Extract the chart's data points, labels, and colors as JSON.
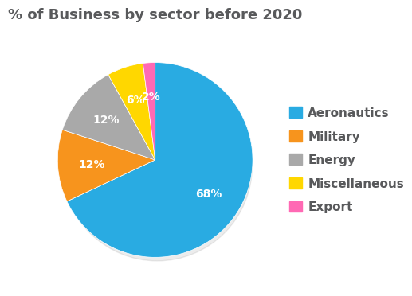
{
  "title": "% of Business by sector before 2020",
  "labels": [
    "Aeronautics",
    "Military",
    "Energy",
    "Miscellaneous",
    "Export"
  ],
  "values": [
    68,
    12,
    12,
    6,
    2
  ],
  "colors": [
    "#29ABE2",
    "#F7941D",
    "#A9A9A9",
    "#FFD700",
    "#FF69B4"
  ],
  "pct_labels": [
    "68%",
    "12%",
    "12%",
    "6%",
    "2%"
  ],
  "title_fontsize": 13,
  "legend_fontsize": 11,
  "pct_fontsize": 10,
  "background_color": "#FFFFFF",
  "legend_text_color": "#58595B"
}
